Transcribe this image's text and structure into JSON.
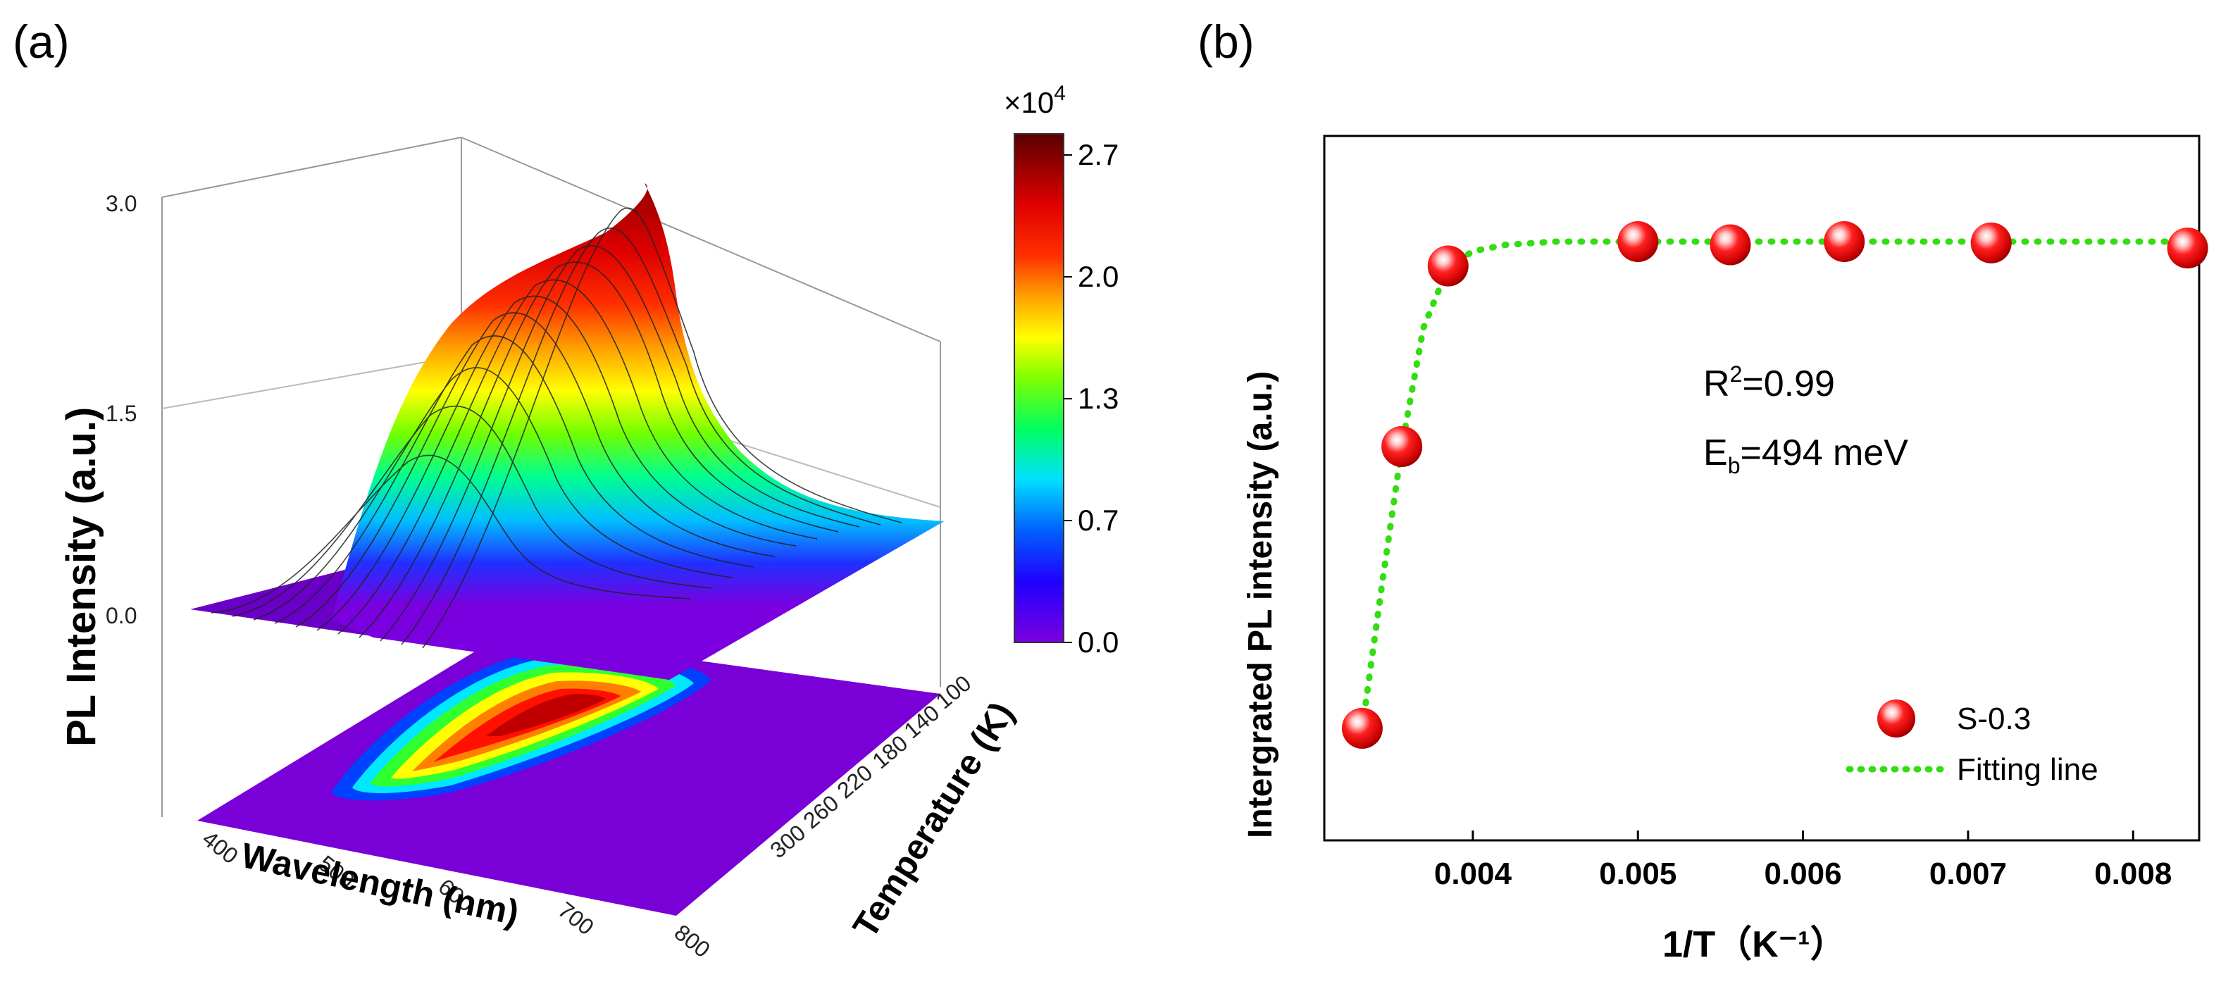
{
  "panels": {
    "a": "(a)",
    "b": "(b)"
  },
  "chart_data": [
    {
      "type": "surface3d",
      "panel": "(a)",
      "zlabel": "PL Intensity (a.u.)",
      "xlabel": "Wavelength (nm)",
      "ylabel": "Temperature (K)",
      "z_ticks": [
        "0.0",
        "1.5",
        "3.0"
      ],
      "x_ticks": [
        "400",
        "500",
        "600",
        "700",
        "800"
      ],
      "y_ticks": [
        "100",
        "140",
        "180",
        "220",
        "260",
        "300"
      ],
      "zlim": [
        0,
        3.0
      ],
      "xlim": [
        400,
        800
      ],
      "ylim": [
        100,
        300
      ],
      "peak_wavelength_nm": 620,
      "colorbar": {
        "multiplier": "×10",
        "exponent": "4",
        "ticks": [
          "2.7",
          "2.0",
          "1.3",
          "0.7",
          "0.0"
        ],
        "range": [
          0,
          2.7
        ],
        "colors": [
          "#5a0000",
          "#c00000",
          "#ff0000",
          "#ff7800",
          "#ffff00",
          "#00ff00",
          "#00e0ff",
          "#0000ff",
          "#7000ff",
          "#8b00ff"
        ]
      }
    },
    {
      "type": "scatter",
      "panel": "(b)",
      "xlabel": "1/T",
      "xunit": "（K⁻¹）",
      "ylabel": "Intergrated PL intensity (a.u.)",
      "xlim": [
        0.0031,
        0.0084
      ],
      "ylim": [
        0,
        1.1
      ],
      "x_ticks": [
        "0.004",
        "0.005",
        "0.006",
        "0.007",
        "0.008"
      ],
      "series": [
        {
          "name": "S-0.3",
          "color": "#ee0000",
          "x": [
            0.00333,
            0.00357,
            0.00385,
            0.005,
            0.00556,
            0.00625,
            0.00714,
            0.00833
          ],
          "y": [
            0.175,
            0.615,
            0.897,
            0.935,
            0.93,
            0.935,
            0.933,
            0.925
          ]
        },
        {
          "name": "Fitting line",
          "color": "#33dd11",
          "style": "dotted",
          "x": [
            0.00333,
            0.00345,
            0.00357,
            0.0037,
            0.00385,
            0.004,
            0.0042,
            0.0045,
            0.005,
            0.006,
            0.007,
            0.0083
          ],
          "y": [
            0.175,
            0.4,
            0.615,
            0.8,
            0.895,
            0.92,
            0.93,
            0.935,
            0.935,
            0.935,
            0.935,
            0.935
          ]
        }
      ],
      "annotation": {
        "r2_base": "R",
        "r2_sup": "2",
        "r2_value": "=0.99",
        "eb_base": "E",
        "eb_sub": "b",
        "eb_value": "=494 meV"
      }
    }
  ]
}
